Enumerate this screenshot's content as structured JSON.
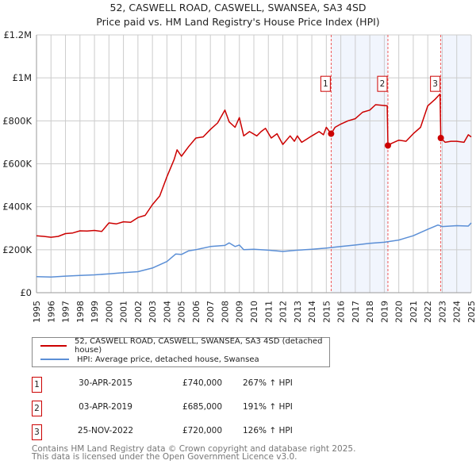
{
  "chart_data": {
    "type": "line",
    "title": "52, CASWELL ROAD, CASWELL, SWANSEA, SA3 4SD",
    "subtitle": "Price paid vs. HM Land Registry's House Price Index (HPI)",
    "xlim": [
      1995,
      2025
    ],
    "ylim": [
      0,
      1200000
    ],
    "x_ticks": [
      "1995",
      "1996",
      "1997",
      "1998",
      "1999",
      "2000",
      "2001",
      "2002",
      "2003",
      "2004",
      "2005",
      "2006",
      "2007",
      "2008",
      "2009",
      "2010",
      "2011",
      "2012",
      "2013",
      "2014",
      "2015",
      "2016",
      "2017",
      "2018",
      "2019",
      "2020",
      "2021",
      "2022",
      "2023",
      "2024",
      "2025"
    ],
    "y_ticks": [
      {
        "v": 0,
        "label": "£0"
      },
      {
        "v": 200000,
        "label": "£200K"
      },
      {
        "v": 400000,
        "label": "£400K"
      },
      {
        "v": 600000,
        "label": "£600K"
      },
      {
        "v": 800000,
        "label": "£800K"
      },
      {
        "v": 1000000,
        "label": "£1M"
      },
      {
        "v": 1200000,
        "label": "£1.2M"
      }
    ],
    "grid": true,
    "shaded_ranges": [
      [
        2015.33,
        2019.25
      ],
      [
        2022.9,
        2025
      ]
    ],
    "series": [
      {
        "name": "52, CASWELL ROAD, CASWELL, SWANSEA, SA3 4SD (detached house)",
        "color": "#cc0000",
        "x": [
          1995,
          1995.5,
          1996,
          1996.5,
          1997,
          1997.5,
          1998,
          1998.5,
          1999,
          1999.5,
          2000,
          2000.5,
          2001,
          2001.5,
          2002,
          2002.5,
          2003,
          2003.5,
          2004,
          2004.5,
          2004.7,
          2005,
          2005.5,
          2006,
          2006.5,
          2007,
          2007.5,
          2008,
          2008.3,
          2008.7,
          2009,
          2009.3,
          2009.7,
          2010.2,
          2010.5,
          2010.8,
          2011.2,
          2011.6,
          2012,
          2012.5,
          2012.8,
          2013,
          2013.3,
          2014,
          2014.5,
          2014.8,
          2015,
          2015.33,
          2015.6,
          2016,
          2016.5,
          2017,
          2017.5,
          2018,
          2018.4,
          2019.2,
          2019.25,
          2019.5,
          2020,
          2020.5,
          2021,
          2021.5,
          2022,
          2022.5,
          2022.85,
          2022.9,
          2023.2,
          2023.6,
          2024,
          2024.5,
          2024.8,
          2025
        ],
        "y": [
          265000,
          262000,
          258000,
          262000,
          275000,
          278000,
          288000,
          287000,
          290000,
          285000,
          325000,
          320000,
          330000,
          328000,
          350000,
          360000,
          410000,
          450000,
          540000,
          620000,
          665000,
          635000,
          680000,
          720000,
          725000,
          760000,
          790000,
          850000,
          795000,
          770000,
          815000,
          730000,
          750000,
          730000,
          750000,
          765000,
          720000,
          740000,
          690000,
          730000,
          705000,
          730000,
          700000,
          730000,
          750000,
          735000,
          770000,
          740000,
          770000,
          785000,
          800000,
          810000,
          840000,
          850000,
          875000,
          870000,
          685000,
          695000,
          710000,
          705000,
          740000,
          770000,
          870000,
          900000,
          925000,
          720000,
          700000,
          705000,
          705000,
          700000,
          735000,
          725000
        ]
      },
      {
        "name": "HPI: Average price, detached house, Swansea",
        "color": "#5b8fd6",
        "x": [
          1995,
          1996,
          1997,
          1998,
          1999,
          2000,
          2001,
          2002,
          2003,
          2004,
          2004.6,
          2005,
          2005.5,
          2006,
          2007,
          2008,
          2008.3,
          2008.7,
          2009,
          2009.3,
          2010,
          2011,
          2012,
          2013,
          2014,
          2015,
          2016,
          2017,
          2018,
          2019,
          2020,
          2021,
          2022,
          2022.7,
          2023,
          2024,
          2024.8,
          2025
        ],
        "y": [
          75000,
          73000,
          77000,
          80000,
          83000,
          88000,
          93000,
          98000,
          115000,
          145000,
          180000,
          178000,
          195000,
          200000,
          215000,
          220000,
          232000,
          215000,
          222000,
          200000,
          202000,
          198000,
          192000,
          198000,
          202000,
          208000,
          215000,
          222000,
          230000,
          235000,
          245000,
          265000,
          295000,
          315000,
          308000,
          312000,
          310000,
          325000
        ]
      }
    ],
    "sales": [
      {
        "id": "1",
        "date": "30-APR-2015",
        "x": 2015.33,
        "price": "£740,000",
        "value": 740000,
        "hpi": "267% ↑ HPI"
      },
      {
        "id": "2",
        "date": "03-APR-2019",
        "x": 2019.25,
        "price": "£685,000",
        "value": 685000,
        "hpi": "191% ↑ HPI"
      },
      {
        "id": "3",
        "date": "25-NOV-2022",
        "x": 2022.9,
        "price": "£720,000",
        "value": 720000,
        "hpi": "126% ↑ HPI"
      }
    ],
    "legend_position": "below"
  },
  "footer": {
    "line1": "Contains HM Land Registry data © Crown copyright and database right 2025.",
    "line2": "This data is licensed under the Open Government Licence v3.0."
  }
}
